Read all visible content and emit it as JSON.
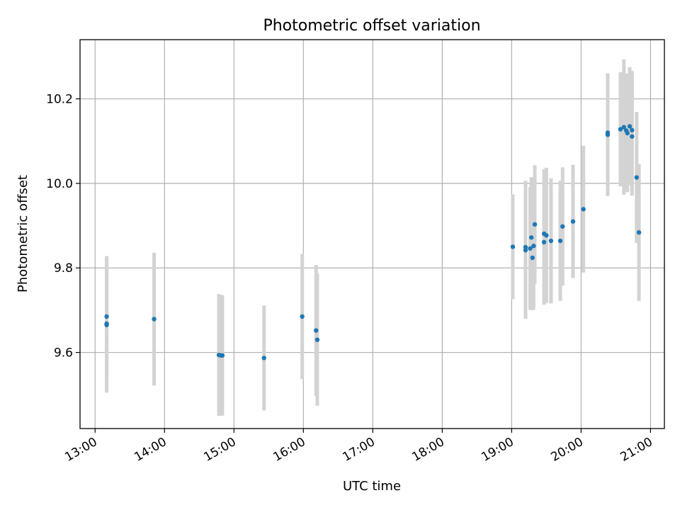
{
  "chart_data": {
    "type": "scatter",
    "title": "Photometric offset variation",
    "xlabel": "UTC time",
    "ylabel": "Photometric offset",
    "grid": true,
    "xlim": [
      "12:47",
      "21:12"
    ],
    "ylim": [
      9.42,
      10.34
    ],
    "xticks": [
      "13:00",
      "14:00",
      "15:00",
      "16:00",
      "17:00",
      "18:00",
      "19:00",
      "20:00",
      "21:00"
    ],
    "yticks": [
      9.6,
      9.8,
      10.0,
      10.2
    ],
    "colors": {
      "points": "#1f77b4",
      "errorbars": "#d3d3d3"
    },
    "points": [
      {
        "x": "13:10",
        "y": 9.685,
        "err": 0.143
      },
      {
        "x": "13:10",
        "y": 9.665,
        "err": 0.16
      },
      {
        "x": "13:10",
        "y": 9.668,
        "err": 0.15
      },
      {
        "x": "13:51",
        "y": 9.679,
        "err": 0.157
      },
      {
        "x": "14:47",
        "y": 9.594,
        "err": 0.144
      },
      {
        "x": "14:49",
        "y": 9.593,
        "err": 0.143
      },
      {
        "x": "14:50",
        "y": 9.593,
        "err": 0.142
      },
      {
        "x": "15:26",
        "y": 9.587,
        "err": 0.124
      },
      {
        "x": "15:59",
        "y": 9.685,
        "err": 0.148
      },
      {
        "x": "16:11",
        "y": 9.652,
        "err": 0.155
      },
      {
        "x": "16:12",
        "y": 9.63,
        "err": 0.156
      },
      {
        "x": "19:01",
        "y": 9.85,
        "err": 0.124
      },
      {
        "x": "19:12",
        "y": 9.849,
        "err": 0.157
      },
      {
        "x": "19:12",
        "y": 9.842,
        "err": 0.162
      },
      {
        "x": "19:16",
        "y": 9.846,
        "err": 0.145
      },
      {
        "x": "19:17",
        "y": 9.872,
        "err": 0.143
      },
      {
        "x": "19:18",
        "y": 9.824,
        "err": 0.124
      },
      {
        "x": "19:19",
        "y": 9.852,
        "err": 0.15
      },
      {
        "x": "19:20",
        "y": 9.903,
        "err": 0.14
      },
      {
        "x": "19:28",
        "y": 9.881,
        "err": 0.153
      },
      {
        "x": "19:28",
        "y": 9.861,
        "err": 0.148
      },
      {
        "x": "19:30",
        "y": 9.877,
        "err": 0.16
      },
      {
        "x": "19:34",
        "y": 9.864,
        "err": 0.148
      },
      {
        "x": "19:42",
        "y": 9.864,
        "err": 0.142
      },
      {
        "x": "19:44",
        "y": 9.898,
        "err": 0.14
      },
      {
        "x": "19:53",
        "y": 9.91,
        "err": 0.134
      },
      {
        "x": "20:02",
        "y": 9.939,
        "err": 0.15
      },
      {
        "x": "20:23",
        "y": 10.115,
        "err": 0.145
      },
      {
        "x": "20:23",
        "y": 10.12,
        "err": 0.14
      },
      {
        "x": "20:34",
        "y": 10.128,
        "err": 0.135
      },
      {
        "x": "20:37",
        "y": 10.133,
        "err": 0.16
      },
      {
        "x": "20:39",
        "y": 10.125,
        "err": 0.135
      },
      {
        "x": "20:40",
        "y": 10.119,
        "err": 0.14
      },
      {
        "x": "20:42",
        "y": 10.135,
        "err": 0.14
      },
      {
        "x": "20:44",
        "y": 10.111,
        "err": 0.14
      },
      {
        "x": "20:44",
        "y": 10.126,
        "err": 0.14
      },
      {
        "x": "20:48",
        "y": 10.014,
        "err": 0.155
      },
      {
        "x": "20:50",
        "y": 9.884,
        "err": 0.162
      }
    ]
  }
}
